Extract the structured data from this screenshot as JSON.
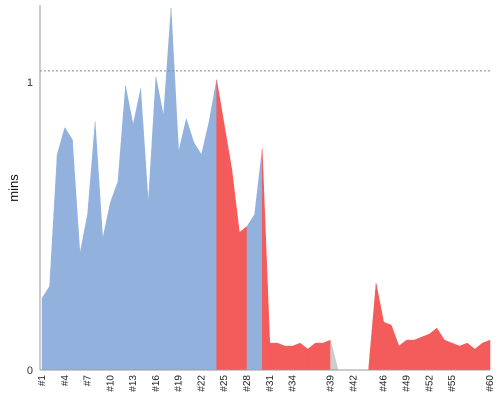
{
  "chart_data": {
    "type": "area",
    "xlabel": "",
    "ylabel": "mins",
    "y_ticks": [
      "0",
      "1"
    ],
    "ylim": [
      0,
      1.22
    ],
    "reference_line": 1,
    "grid": false,
    "colors": {
      "success": "#92b2dd",
      "failed": "#f45b5b",
      "missing": "#cccccc",
      "reference": "#888888",
      "axis": "#999999"
    },
    "x": [
      "#1",
      "#2",
      "#3",
      "#4",
      "#5",
      "#6",
      "#7",
      "#8",
      "#9",
      "#10",
      "#11",
      "#12",
      "#13",
      "#14",
      "#15",
      "#16",
      "#17",
      "#18",
      "#19",
      "#20",
      "#21",
      "#22",
      "#23",
      "#24",
      "#25",
      "#26",
      "#27",
      "#28",
      "#29",
      "#30",
      "#31",
      "#32",
      "#33",
      "#34",
      "#35",
      "#36",
      "#37",
      "#38",
      "#39",
      "#40",
      "#41",
      "#42",
      "#43",
      "#44",
      "#45",
      "#46",
      "#47",
      "#48",
      "#49",
      "#50",
      "#51",
      "#52",
      "#53",
      "#54",
      "#55",
      "#56",
      "#57",
      "#58",
      "#59",
      "#60"
    ],
    "x_tick_labels": [
      "#1",
      "#4",
      "#7",
      "#10",
      "#13",
      "#16",
      "#19",
      "#22",
      "#25",
      "#28",
      "#31",
      "#34",
      "#39",
      "#42",
      "#46",
      "#49",
      "#52",
      "#55",
      "#60"
    ],
    "values": [
      0.24,
      0.28,
      0.72,
      0.81,
      0.77,
      0.39,
      0.52,
      0.83,
      0.44,
      0.56,
      0.63,
      0.95,
      0.82,
      0.94,
      0.56,
      0.98,
      0.85,
      1.21,
      0.73,
      0.84,
      0.76,
      0.72,
      0.83,
      0.97,
      0.82,
      0.67,
      0.46,
      0.48,
      0.52,
      0.74,
      0.09,
      0.09,
      0.08,
      0.08,
      0.09,
      0.07,
      0.09,
      0.09,
      0.1,
      0,
      0,
      0,
      0,
      0,
      0.29,
      0.16,
      0.15,
      0.08,
      0.1,
      0.1,
      0.11,
      0.12,
      0.14,
      0.1,
      0.09,
      0.08,
      0.09,
      0.07,
      0.09,
      0.1
    ],
    "status": [
      "success",
      "success",
      "success",
      "success",
      "success",
      "success",
      "success",
      "success",
      "success",
      "success",
      "success",
      "success",
      "success",
      "success",
      "success",
      "success",
      "success",
      "success",
      "success",
      "success",
      "success",
      "success",
      "success",
      "success",
      "failed",
      "failed",
      "failed",
      "failed",
      "success",
      "success",
      "failed",
      "failed",
      "failed",
      "failed",
      "failed",
      "failed",
      "failed",
      "failed",
      "failed",
      "missing",
      "missing",
      "missing",
      "missing",
      "missing",
      "failed",
      "failed",
      "failed",
      "failed",
      "failed",
      "failed",
      "failed",
      "failed",
      "failed",
      "failed",
      "failed",
      "failed",
      "failed",
      "failed",
      "failed",
      "failed"
    ]
  }
}
